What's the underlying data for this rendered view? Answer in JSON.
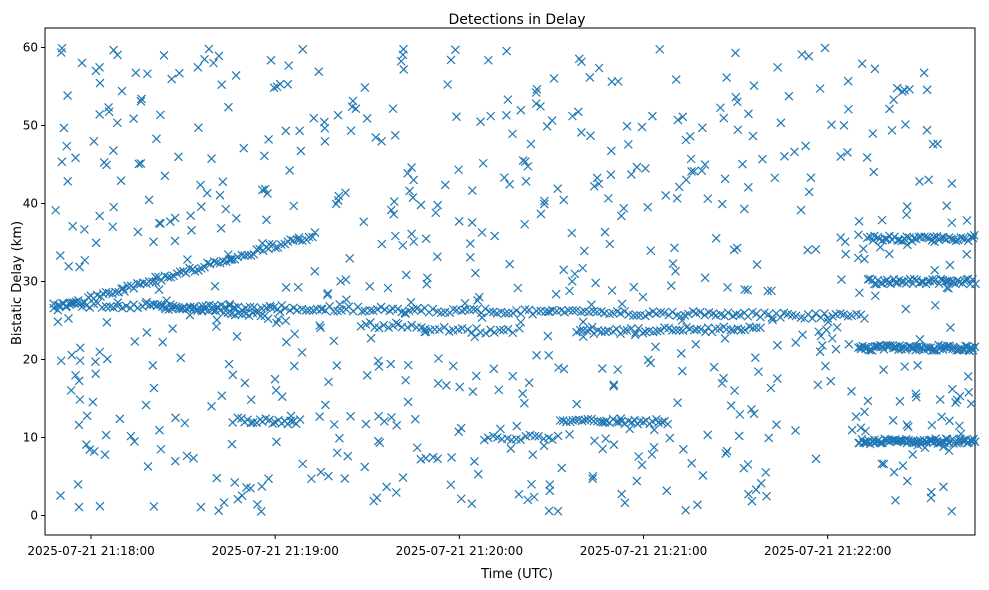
{
  "chart_data": {
    "type": "scatter",
    "title": "Detections in Delay",
    "xlabel": "Time (UTC)",
    "ylabel": "Bistatic Delay (km)",
    "marker": "x",
    "color": "#1f77b4",
    "ylim": [
      -2.5,
      62.5
    ],
    "xlim_seconds_from_21_17_48": [
      -3,
      300
    ],
    "x_tick_labels": [
      "2025-07-21 21:18:00",
      "2025-07-21 21:19:00",
      "2025-07-21 21:20:00",
      "2025-07-21 21:21:00",
      "2025-07-21 21:22:00"
    ],
    "x_tick_seconds": [
      12,
      72,
      132,
      192,
      252
    ],
    "y_ticks": [
      0,
      10,
      20,
      30,
      40,
      50,
      60
    ],
    "tracks": [
      {
        "name": "rising track",
        "x_start": 0,
        "x_end": 85,
        "y_start": 26.5,
        "y_end": 36,
        "step": 1.0
      },
      {
        "name": "main track",
        "x_start": 0,
        "x_end": 265,
        "y_start": 27.0,
        "y_end": 25.5,
        "step": 1.3
      },
      {
        "name": "track 26 early",
        "x_start": 30,
        "x_end": 70,
        "y_start": 27.0,
        "y_end": 25.5,
        "step": 1.2
      },
      {
        "name": "track 23.5",
        "x_start": 100,
        "x_end": 150,
        "y_start": 24.5,
        "y_end": 23.5,
        "step": 1.5
      },
      {
        "name": "track 23.5 late",
        "x_start": 170,
        "x_end": 230,
        "y_start": 23.5,
        "y_end": 24.0,
        "step": 1.2
      },
      {
        "name": "track 12 early",
        "x_start": 60,
        "x_end": 80,
        "y_start": 12.2,
        "y_end": 12.0,
        "step": 1.0
      },
      {
        "name": "track 12 late",
        "x_start": 165,
        "x_end": 200,
        "y_start": 12.2,
        "y_end": 12.0,
        "step": 1.0
      },
      {
        "name": "track 10",
        "x_start": 140,
        "x_end": 165,
        "y_start": 10.0,
        "y_end": 10.0,
        "step": 1.5
      },
      {
        "name": "track 35.5",
        "x_start": 265,
        "x_end": 300,
        "y_start": 35.5,
        "y_end": 35.5,
        "step": 0.8
      },
      {
        "name": "track 30",
        "x_start": 265,
        "x_end": 300,
        "y_start": 30.0,
        "y_end": 30.0,
        "step": 0.7
      },
      {
        "name": "track 21.5",
        "x_start": 262,
        "x_end": 300,
        "y_start": 21.5,
        "y_end": 21.5,
        "step": 0.5
      },
      {
        "name": "track 9.5",
        "x_start": 262,
        "x_end": 300,
        "y_start": 9.5,
        "y_end": 9.5,
        "step": 0.5
      }
    ],
    "background_clutter": {
      "count": 700,
      "x_range": [
        0,
        300
      ],
      "y_range": [
        0.5,
        60
      ],
      "seed": 7
    }
  }
}
